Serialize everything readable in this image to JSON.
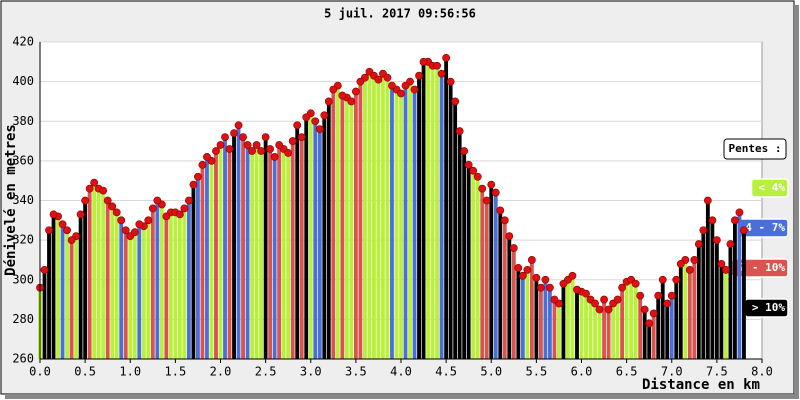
{
  "chart_data": {
    "type": "bar",
    "title": "5 juil. 2017 09:56:56",
    "y_label": "Dénivelé en metres",
    "x_label": "Distance en km",
    "legend_title": "Pentes :",
    "legend": "right",
    "grid": true,
    "dot_color": "#dd1111",
    "xlim": [
      0,
      8
    ],
    "ylim": [
      260,
      420
    ],
    "xticks": [
      {
        "value": 0,
        "label": "0.0"
      },
      {
        "value": 0.5,
        "label": "0.5"
      },
      {
        "value": 1,
        "label": "1.0"
      },
      {
        "value": 1.5,
        "label": "1.5"
      },
      {
        "value": 2,
        "label": "2.0"
      },
      {
        "value": 2.5,
        "label": "2.5"
      },
      {
        "value": 3,
        "label": "3.0"
      },
      {
        "value": 3.5,
        "label": "3.5"
      },
      {
        "value": 4,
        "label": "4.0"
      },
      {
        "value": 4.5,
        "label": "4.5"
      },
      {
        "value": 5,
        "label": "5.0"
      },
      {
        "value": 5.5,
        "label": "5.5"
      },
      {
        "value": 6,
        "label": "6.0"
      },
      {
        "value": 6.5,
        "label": "6.5"
      },
      {
        "value": 7,
        "label": "7.0"
      },
      {
        "value": 7.5,
        "label": "7.5"
      },
      {
        "value": 8,
        "label": "8.0"
      }
    ],
    "yticks": [
      260,
      280,
      300,
      320,
      340,
      360,
      380,
      400,
      420
    ],
    "series": [
      {
        "name": "< 4%",
        "color": "#b8f03c",
        "x": [
          0,
          0.2,
          0.3,
          0.4,
          0.6,
          0.65,
          0.7,
          0.8,
          0.85,
          1,
          1.05,
          1.15,
          1.2,
          1.35,
          1.45,
          1.5,
          1.55,
          1.6,
          1.9,
          2,
          2.35,
          2.4,
          2.45,
          2.7,
          2.75,
          3,
          3.3,
          3.4,
          3.45,
          3.6,
          3.65,
          3.7,
          3.75,
          3.8,
          3.85,
          3.95,
          4,
          4.1,
          4.3,
          4.35,
          4.4,
          4.8,
          4.85,
          5.4,
          5.75,
          5.85,
          5.9,
          6,
          6.05,
          6.1,
          6.15,
          6.2,
          6.35,
          6.4,
          6.5,
          6.55,
          6.6,
          7.15,
          7.6
        ],
        "values": [
          296,
          332,
          325,
          322,
          349,
          346,
          345,
          337,
          334,
          322,
          324,
          327,
          330,
          338,
          334,
          334,
          333,
          336,
          360,
          368,
          365,
          368,
          365,
          366,
          364,
          384,
          398,
          392,
          390,
          402,
          405,
          403,
          401,
          404,
          402,
          396,
          394,
          400,
          410,
          408,
          408,
          355,
          352,
          305,
          288,
          300,
          302,
          294,
          293,
          290,
          288,
          285,
          288,
          290,
          299,
          300,
          298,
          310,
          305
        ]
      },
      {
        "name": "4 - 7%",
        "color": "#4a6fd8",
        "x": [
          0.25,
          0.9,
          1.1,
          1.3,
          1.65,
          1.75,
          1.85,
          2.05,
          2.2,
          2.3,
          2.6,
          3.05,
          3.1,
          3.9,
          4.05,
          4.15,
          4.45,
          5.05,
          5.35,
          5.6,
          5.65,
          7,
          7.75
        ],
        "values": [
          328,
          330,
          328,
          340,
          340,
          352,
          362,
          372,
          378,
          368,
          362,
          380,
          376,
          398,
          398,
          396,
          404,
          344,
          302,
          300,
          296,
          292,
          334
        ]
      },
      {
        "name": "7 - 10%",
        "color": "#d9534f",
        "x": [
          0.35,
          0.55,
          0.75,
          0.95,
          1.25,
          1.4,
          1.8,
          1.95,
          2.1,
          2.25,
          2.55,
          2.65,
          2.8,
          2.9,
          3.25,
          3.35,
          3.5,
          3.55,
          4.9,
          4.95,
          5.15,
          5.25,
          5.45,
          5.55,
          5.7,
          6.25,
          6.3,
          6.45,
          6.65,
          6.8,
          7.2,
          7.25
        ],
        "values": [
          320,
          346,
          340,
          325,
          336,
          332,
          358,
          365,
          366,
          372,
          366,
          368,
          370,
          372,
          396,
          393,
          395,
          400,
          346,
          340,
          330,
          316,
          310,
          296,
          290,
          290,
          285,
          296,
          292,
          283,
          305,
          310
        ]
      },
      {
        "name": "> 10%",
        "color": "#000000",
        "x": [
          0.05,
          0.1,
          0.15,
          0.45,
          0.5,
          1.7,
          2.15,
          2.5,
          2.85,
          2.95,
          3.15,
          3.2,
          4.2,
          4.25,
          4.5,
          4.55,
          4.6,
          4.65,
          4.7,
          4.75,
          5,
          5.1,
          5.2,
          5.3,
          5.5,
          5.8,
          5.95,
          6.7,
          6.75,
          6.85,
          6.9,
          6.95,
          7.05,
          7.1,
          7.3,
          7.35,
          7.4,
          7.45,
          7.5,
          7.55,
          7.65,
          7.7,
          7.8
        ],
        "values": [
          305,
          325,
          333,
          333,
          340,
          348,
          374,
          372,
          378,
          382,
          383,
          390,
          403,
          410,
          412,
          400,
          390,
          375,
          365,
          358,
          348,
          335,
          322,
          306,
          301,
          298,
          295,
          285,
          278,
          292,
          300,
          288,
          300,
          308,
          318,
          325,
          340,
          330,
          320,
          308,
          318,
          330,
          325
        ]
      }
    ]
  }
}
